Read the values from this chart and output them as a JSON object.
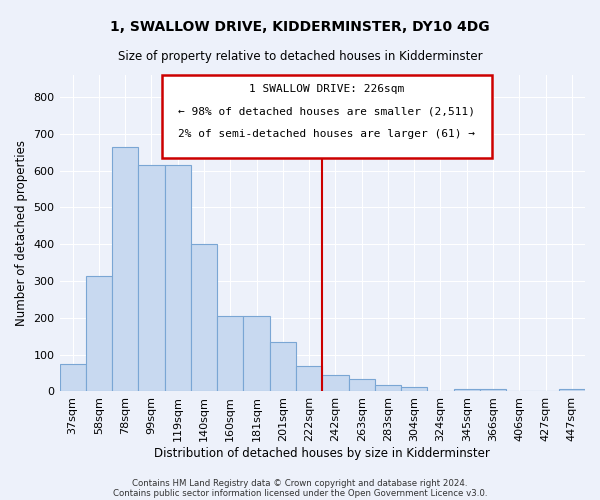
{
  "title": "1, SWALLOW DRIVE, KIDDERMINSTER, DY10 4DG",
  "subtitle": "Size of property relative to detached houses in Kidderminster",
  "xlabel": "Distribution of detached houses by size in Kidderminster",
  "ylabel": "Number of detached properties",
  "bar_color": "#c8d9f0",
  "bar_edge_color": "#7aa6d4",
  "background_color": "#edf1fa",
  "grid_color": "#ffffff",
  "annotation_box_color": "#cc0000",
  "vline_color": "#cc0000",
  "annotation_title": "1 SWALLOW DRIVE: 226sqm",
  "annotation_line1": "← 98% of detached houses are smaller (2,511)",
  "annotation_line2": "2% of semi-detached houses are larger (61) →",
  "categories": [
    "37sqm",
    "58sqm",
    "78sqm",
    "99sqm",
    "119sqm",
    "140sqm",
    "160sqm",
    "181sqm",
    "201sqm",
    "222sqm",
    "242sqm",
    "263sqm",
    "283sqm",
    "304sqm",
    "324sqm",
    "345sqm",
    "366sqm",
    "406sqm",
    "427sqm",
    "447sqm"
  ],
  "values": [
    75,
    315,
    665,
    615,
    615,
    400,
    205,
    205,
    135,
    70,
    45,
    35,
    18,
    13,
    0,
    8,
    8,
    0,
    0,
    8
  ],
  "ylim": [
    0,
    860
  ],
  "yticks": [
    0,
    100,
    200,
    300,
    400,
    500,
    600,
    700,
    800
  ],
  "vline_bin_index": 9,
  "footnote1": "Contains HM Land Registry data © Crown copyright and database right 2024.",
  "footnote2": "Contains public sector information licensed under the Open Government Licence v3.0."
}
